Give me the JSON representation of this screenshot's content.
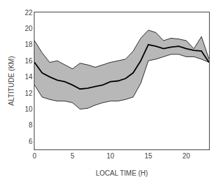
{
  "chart_data": {
    "type": "line",
    "xlabel": "LOCAL TIME (H)",
    "ylabel": "ALTITUDE (KM)",
    "x": [
      0,
      1,
      2,
      3,
      4,
      5,
      6,
      7,
      8,
      9,
      10,
      11,
      12,
      13,
      14,
      15,
      16,
      17,
      18,
      19,
      20,
      21,
      22,
      23
    ],
    "series": [
      {
        "type": "band",
        "color": "#b8b8b8",
        "upper": [
          18.5,
          17.0,
          15.8,
          16.0,
          15.5,
          15.0,
          15.7,
          15.5,
          15.2,
          15.5,
          15.8,
          16.0,
          16.2,
          17.2,
          18.8,
          19.8,
          19.5,
          18.5,
          18.8,
          18.7,
          18.5,
          17.5,
          19.0,
          16.2
        ],
        "lower": [
          13.0,
          11.5,
          11.2,
          11.0,
          11.0,
          10.8,
          10.0,
          10.1,
          10.5,
          10.8,
          11.0,
          11.0,
          11.2,
          11.5,
          13.2,
          16.0,
          16.2,
          16.5,
          16.8,
          16.8,
          16.5,
          16.5,
          16.2,
          15.8
        ]
      },
      {
        "type": "line",
        "color": "#000000",
        "values": [
          15.8,
          14.5,
          14.0,
          13.6,
          13.4,
          13.0,
          12.5,
          12.6,
          12.8,
          13.0,
          13.4,
          13.5,
          13.8,
          14.5,
          16.0,
          18.0,
          17.8,
          17.5,
          17.7,
          17.8,
          17.5,
          17.3,
          17.2,
          15.8
        ]
      }
    ],
    "xlim": [
      0,
      23
    ],
    "ylim": [
      5,
      22
    ],
    "xticks": [
      0,
      5,
      10,
      15,
      20
    ],
    "yticks": [
      6,
      8,
      10,
      12,
      14,
      16,
      18,
      20,
      22
    ],
    "grid": false
  }
}
